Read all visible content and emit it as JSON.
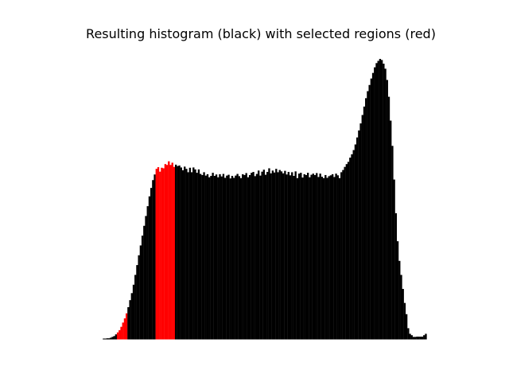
{
  "chart_data": {
    "type": "bar",
    "title": "Resulting histogram (black) with selected regions (red)",
    "xlabel": "",
    "ylabel": "",
    "axes_visible": false,
    "grid": false,
    "xlim": [
      0,
      255
    ],
    "ylim": [
      0,
      100
    ],
    "bar_color": "#000000",
    "highlight_color": "#ff0000",
    "background": "#ffffff",
    "values": [
      0,
      0.3,
      0.3,
      0.4,
      0.4,
      0.6,
      0.9,
      1.2,
      1.8,
      2.5,
      3.3,
      4.5,
      6,
      7.5,
      9.3,
      11.5,
      14,
      16.5,
      19.5,
      23,
      26.5,
      30,
      33.5,
      37,
      40.5,
      44,
      47.5,
      51,
      54,
      56.8,
      58.8,
      60.8,
      61.4,
      59.8,
      61.2,
      61,
      62.5,
      62.2,
      63.5,
      62.2,
      63,
      61.5,
      62.3,
      61.8,
      62,
      61.3,
      60.3,
      61.6,
      60.8,
      59.6,
      61.2,
      59.6,
      61.3,
      60.6,
      59.4,
      60.6,
      59,
      58.6,
      59.6,
      58.4,
      58.9,
      57.8,
      58.3,
      59.4,
      58.3,
      58.8,
      57.8,
      58.9,
      58.1,
      59,
      57.6,
      58.4,
      58.7,
      57.4,
      58.3,
      57.6,
      58.4,
      59,
      58.2,
      57.5,
      58.9,
      58.6,
      59.3,
      57.8,
      58.6,
      59.4,
      59.7,
      58.2,
      59,
      60.2,
      58.4,
      59.8,
      60.5,
      58.7,
      59.7,
      61,
      59.2,
      60.2,
      59.5,
      60.8,
      59.6,
      60.4,
      59.9,
      59.2,
      60.1,
      58.8,
      59.7,
      58.5,
      59.6,
      58.3,
      59.9,
      57.5,
      59.1,
      59.4,
      57.7,
      58.9,
      58.6,
      59.4,
      57.8,
      58.7,
      59.1,
      58.6,
      59.3,
      57.9,
      59.1,
      58,
      57.5,
      58.6,
      57.6,
      58.2,
      58.5,
      58.9,
      57.9,
      59.1,
      58.5,
      57.5,
      59.6,
      60.4,
      61.5,
      62.5,
      63.3,
      64.8,
      66,
      67.5,
      69.5,
      72,
      74.5,
      77,
      80,
      83,
      86,
      88.5,
      90.7,
      93,
      95,
      97,
      98.5,
      99.3,
      100,
      99.6,
      98.3,
      96.5,
      92.5,
      86.5,
      78,
      69,
      57,
      45,
      35,
      28,
      23,
      18,
      13,
      9,
      4,
      2,
      1.5,
      0.9,
      0.9,
      1,
      1,
      1,
      1,
      1.5,
      2,
      0,
      0,
      0,
      0,
      0,
      0,
      0
    ],
    "highlighted_bins": [
      9,
      10,
      11,
      12,
      13,
      14,
      31,
      32,
      33,
      34,
      35,
      36,
      37,
      38,
      39,
      40,
      41
    ]
  }
}
